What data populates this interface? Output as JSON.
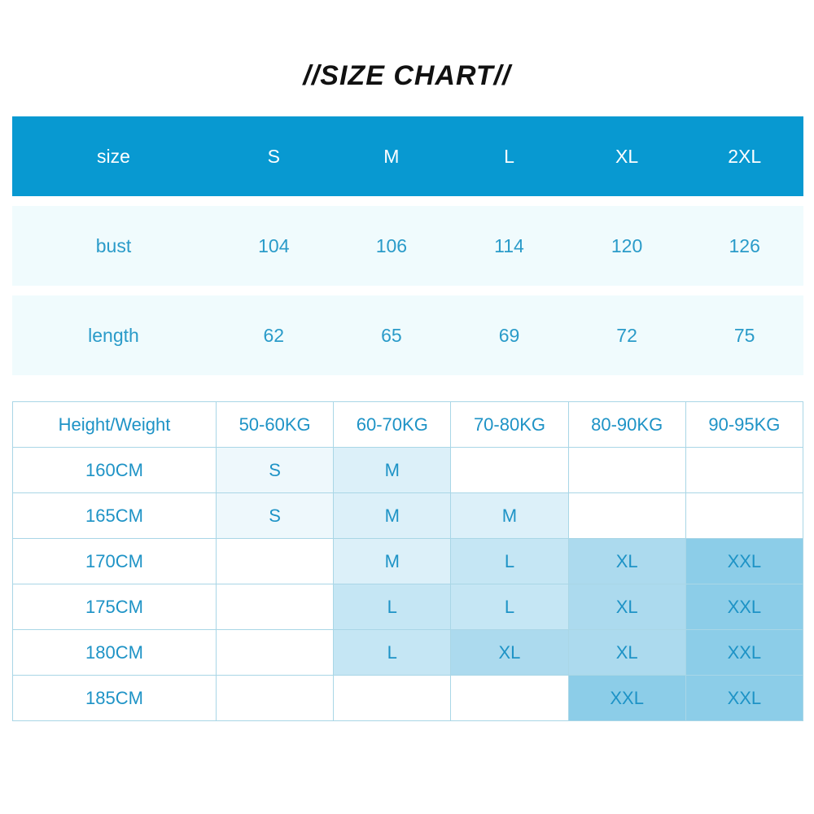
{
  "title": "//SIZE CHART//",
  "measurements": {
    "header": [
      "size",
      "S",
      "M",
      "L",
      "XL",
      "2XL"
    ],
    "rows": [
      [
        "bust",
        "104",
        "106",
        "114",
        "120",
        "126"
      ],
      [
        "length",
        "62",
        "65",
        "69",
        "72",
        "75"
      ]
    ]
  },
  "recommendation": {
    "header": [
      "Height/Weight",
      "50-60KG",
      "60-70KG",
      "70-80KG",
      "80-90KG",
      "90-95KG"
    ],
    "rows": [
      [
        "160CM",
        "S",
        "M",
        "",
        "",
        ""
      ],
      [
        "165CM",
        "S",
        "M",
        "M",
        "",
        ""
      ],
      [
        "170CM",
        "",
        "M",
        "L",
        "XL",
        "XXL"
      ],
      [
        "175CM",
        "",
        "L",
        "L",
        "XL",
        "XXL"
      ],
      [
        "180CM",
        "",
        "L",
        "XL",
        "XL",
        "XXL"
      ],
      [
        "185CM",
        "",
        "",
        "",
        "XXL",
        "XXL"
      ]
    ]
  },
  "colors": {
    "header_bg": "#0899d1",
    "row_bg": "#f0fbfd",
    "text": "#2a9bc9",
    "size_shades": {
      "S": "#eef8fc",
      "M": "#dcf0f9",
      "L": "#c5e6f4",
      "XL": "#acdaee",
      "XXL": "#8ccde8"
    }
  }
}
